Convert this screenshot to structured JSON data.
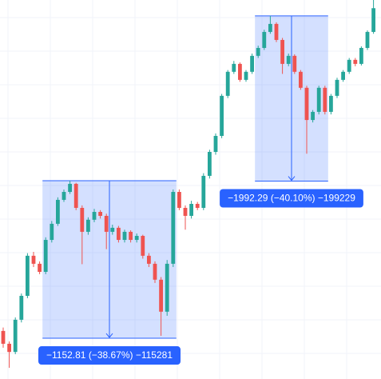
{
  "chart_data": {
    "type": "candlestick",
    "log_scale": true,
    "grid": true,
    "ylim": [
      1611,
      5219
    ],
    "up_color": "#26a69a",
    "down_color": "#ef5350",
    "open": [
      1870,
      1797,
      1752,
      1936,
      2085,
      2361,
      2303,
      2246,
      2480,
      2607,
      2808,
      2878,
      2951,
      2739,
      2543,
      2640,
      2705,
      2672,
      2543,
      2575,
      2480,
      2543,
      2480,
      2511,
      2361,
      2303,
      2192,
      1985,
      2303,
      2878,
      2739,
      2672,
      2773,
      2739,
      3025,
      3258,
      3424,
      3877,
      4177,
      4281,
      4074,
      4177,
      4389,
      4498,
      4727,
      4846,
      4611,
      4281,
      4389,
      4177,
      3975,
      3597,
      3689,
      3975,
      3689,
      3877,
      4074,
      4177,
      4335,
      4281,
      4498,
      4727
    ],
    "high": [
      1890,
      1810,
      1950,
      2100,
      2380,
      2390,
      2320,
      2500,
      2630,
      2830,
      2900,
      2980,
      2960,
      2760,
      2660,
      2730,
      2720,
      2690,
      2600,
      2590,
      2560,
      2555,
      2530,
      2520,
      2380,
      2320,
      2210,
      2330,
      2900,
      2900,
      2760,
      2800,
      2790,
      3050,
      3280,
      3450,
      3900,
      4200,
      4320,
      4300,
      4200,
      4420,
      4530,
      4760,
      4968,
      4870,
      4640,
      4420,
      4410,
      4200,
      4000,
      3710,
      4000,
      4000,
      3900,
      4100,
      4200,
      4360,
      4360,
      4520,
      4750,
      5219
    ],
    "low": [
      1775,
      1668,
      1740,
      1920,
      2070,
      2280,
      2230,
      2230,
      2460,
      2590,
      2790,
      2860,
      2720,
      2300,
      2520,
      2620,
      2650,
      2410,
      2520,
      2460,
      2460,
      2460,
      2460,
      2340,
      2280,
      2170,
      1842,
      1960,
      2280,
      2720,
      2560,
      2650,
      2720,
      2720,
      3000,
      3230,
      3400,
      3850,
      4150,
      4050,
      4050,
      4150,
      4360,
      4470,
      4700,
      4580,
      4150,
      4250,
      4150,
      3950,
      3240,
      3570,
      3660,
      3660,
      3660,
      3850,
      4050,
      4150,
      4250,
      4260,
      4470,
      4700
    ],
    "close": [
      1797,
      1752,
      1936,
      2085,
      2361,
      2303,
      2246,
      2480,
      2607,
      2808,
      2878,
      2951,
      2739,
      2543,
      2640,
      2705,
      2672,
      2543,
      2575,
      2480,
      2543,
      2480,
      2511,
      2361,
      2303,
      2192,
      1985,
      2303,
      2878,
      2739,
      2672,
      2773,
      2739,
      3025,
      3258,
      3424,
      3877,
      4177,
      4281,
      4074,
      4177,
      4389,
      4498,
      4727,
      4846,
      4611,
      4281,
      4389,
      4177,
      3975,
      3597,
      3689,
      3975,
      3689,
      3877,
      4074,
      4177,
      4335,
      4281,
      4498,
      4727,
      5088
    ],
    "measurements": [
      {
        "label": "−1152.81 (−38.67%) −115281",
        "from_index": 7,
        "to_index": 28,
        "top": 2980,
        "bottom": 1828,
        "color": "#2962ff"
      },
      {
        "label": "−1992.29 (−40.10%) −199229",
        "from_index": 42,
        "to_index": 53,
        "top": 4968,
        "bottom": 2976,
        "color": "#2962ff"
      }
    ]
  }
}
